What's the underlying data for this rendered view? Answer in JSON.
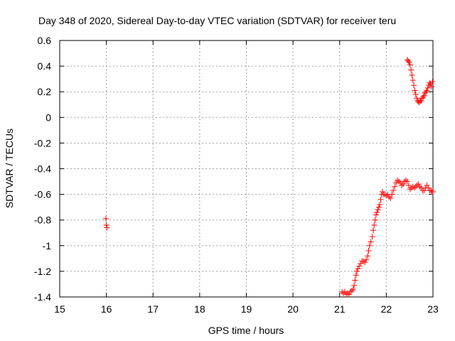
{
  "chart_data": {
    "type": "scatter",
    "title": "Day 348 of 2020, Sidereal Day-to-day VTEC variation (SDTVAR) for receiver teru",
    "xlabel": "GPS time / hours",
    "ylabel": "SDTVAR / TECUs",
    "xlim": [
      15,
      23
    ],
    "ylim": [
      -1.4,
      0.6
    ],
    "xticks": [
      15,
      16,
      17,
      18,
      19,
      20,
      21,
      22,
      23
    ],
    "yticks": [
      0.6,
      0.4,
      0.2,
      0,
      -0.2,
      -0.4,
      -0.6,
      -0.8,
      -1,
      -1.2,
      -1.4
    ],
    "xtick_labels": [
      "15",
      "16",
      "17",
      "18",
      "19",
      "20",
      "21",
      "22",
      "23"
    ],
    "ytick_labels": [
      "0.6",
      "0.4",
      "0.2",
      "0",
      "-0.2",
      "-0.4",
      "-0.6",
      "-0.8",
      "-1",
      "-1.2",
      "-1.4"
    ],
    "grid": true,
    "marker": "+",
    "marker_color": "#ff0000",
    "series": [
      {
        "points": [
          [
            15.99,
            -0.79
          ],
          [
            16.0,
            -0.84
          ],
          [
            16.01,
            -0.86
          ],
          [
            21.05,
            -1.36
          ],
          [
            21.08,
            -1.37
          ],
          [
            21.11,
            -1.36
          ],
          [
            21.14,
            -1.38
          ],
          [
            21.17,
            -1.37
          ],
          [
            21.2,
            -1.38
          ],
          [
            21.23,
            -1.36
          ],
          [
            21.26,
            -1.35
          ],
          [
            21.29,
            -1.34
          ],
          [
            21.31,
            -1.31
          ],
          [
            21.33,
            -1.27
          ],
          [
            21.35,
            -1.23
          ],
          [
            21.37,
            -1.2
          ],
          [
            21.39,
            -1.18
          ],
          [
            21.42,
            -1.16
          ],
          [
            21.45,
            -1.14
          ],
          [
            21.48,
            -1.12
          ],
          [
            21.51,
            -1.12
          ],
          [
            21.54,
            -1.13
          ],
          [
            21.57,
            -1.11
          ],
          [
            21.6,
            -1.08
          ],
          [
            21.62,
            -1.04
          ],
          [
            21.64,
            -1.0
          ],
          [
            21.67,
            -0.97
          ],
          [
            21.7,
            -0.93
          ],
          [
            21.72,
            -0.88
          ],
          [
            21.74,
            -0.84
          ],
          [
            21.76,
            -0.8
          ],
          [
            21.78,
            -0.76
          ],
          [
            21.8,
            -0.74
          ],
          [
            21.82,
            -0.72
          ],
          [
            21.84,
            -0.7
          ],
          [
            21.86,
            -0.68
          ],
          [
            21.88,
            -0.64
          ],
          [
            21.9,
            -0.6
          ],
          [
            21.92,
            -0.58
          ],
          [
            21.94,
            -0.6
          ],
          [
            21.97,
            -0.6
          ],
          [
            22.0,
            -0.61
          ],
          [
            22.03,
            -0.6
          ],
          [
            22.06,
            -0.62
          ],
          [
            22.09,
            -0.63
          ],
          [
            22.12,
            -0.6
          ],
          [
            22.15,
            -0.57
          ],
          [
            22.18,
            -0.54
          ],
          [
            22.21,
            -0.51
          ],
          [
            22.24,
            -0.49
          ],
          [
            22.27,
            -0.5
          ],
          [
            22.3,
            -0.51
          ],
          [
            22.33,
            -0.53
          ],
          [
            22.36,
            -0.52
          ],
          [
            22.39,
            -0.5
          ],
          [
            22.42,
            -0.49
          ],
          [
            22.45,
            -0.5
          ],
          [
            22.48,
            -0.53
          ],
          [
            22.51,
            -0.56
          ],
          [
            22.54,
            -0.55
          ],
          [
            22.57,
            -0.54
          ],
          [
            22.6,
            -0.55
          ],
          [
            22.63,
            -0.54
          ],
          [
            22.66,
            -0.53
          ],
          [
            22.69,
            -0.52
          ],
          [
            22.72,
            -0.54
          ],
          [
            22.75,
            -0.55
          ],
          [
            22.78,
            -0.57
          ],
          [
            22.81,
            -0.57
          ],
          [
            22.84,
            -0.55
          ],
          [
            22.87,
            -0.53
          ],
          [
            22.9,
            -0.55
          ],
          [
            22.93,
            -0.57
          ],
          [
            22.96,
            -0.57
          ],
          [
            22.98,
            -0.58
          ],
          [
            23.0,
            -0.58
          ],
          [
            22.45,
            0.45
          ],
          [
            22.47,
            0.44
          ],
          [
            22.49,
            0.43
          ],
          [
            22.51,
            0.41
          ],
          [
            22.53,
            0.37
          ],
          [
            22.55,
            0.33
          ],
          [
            22.57,
            0.29
          ],
          [
            22.59,
            0.25
          ],
          [
            22.61,
            0.21
          ],
          [
            22.63,
            0.18
          ],
          [
            22.65,
            0.15
          ],
          [
            22.67,
            0.13
          ],
          [
            22.69,
            0.12
          ],
          [
            22.71,
            0.12
          ],
          [
            22.73,
            0.13
          ],
          [
            22.75,
            0.13
          ],
          [
            22.77,
            0.15
          ],
          [
            22.79,
            0.16
          ],
          [
            22.81,
            0.17
          ],
          [
            22.83,
            0.19
          ],
          [
            22.85,
            0.2
          ],
          [
            22.87,
            0.21
          ],
          [
            22.89,
            0.23
          ],
          [
            22.91,
            0.25
          ],
          [
            22.93,
            0.27
          ],
          [
            22.95,
            0.26
          ],
          [
            22.97,
            0.24
          ],
          [
            22.99,
            0.28
          ]
        ]
      }
    ]
  }
}
